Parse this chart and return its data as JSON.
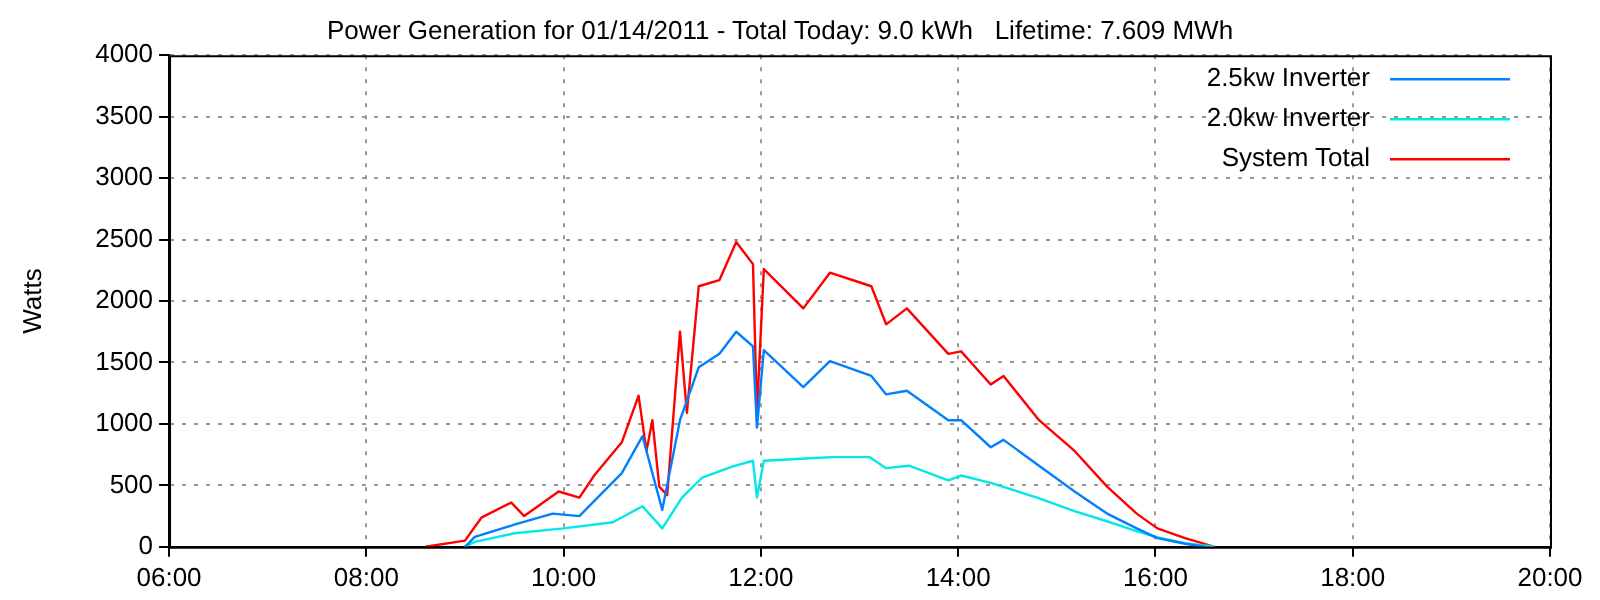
{
  "chart_data": {
    "type": "line",
    "title": "Power Generation for 01/14/2011 - Total Today: 9.0 kWh   Lifetime: 7.609 MWh",
    "ylabel": "Watts",
    "xlim": [
      6,
      20
    ],
    "xticks": [
      {
        "value": 6,
        "label": "06:00"
      },
      {
        "value": 8,
        "label": "08:00"
      },
      {
        "value": 10,
        "label": "10:00"
      },
      {
        "value": 12,
        "label": "12:00"
      },
      {
        "value": 14,
        "label": "14:00"
      },
      {
        "value": 16,
        "label": "16:00"
      },
      {
        "value": 18,
        "label": "18:00"
      },
      {
        "value": 20,
        "label": "20:00"
      }
    ],
    "ylim": [
      0,
      4000
    ],
    "yticks": [
      0,
      500,
      1000,
      1500,
      2000,
      2500,
      3000,
      3500,
      4000
    ],
    "grid": true,
    "legend": "top right",
    "marker": "none",
    "line_style": "solid",
    "series": [
      {
        "name": "2.5kw Inverter",
        "color": "#0080ff",
        "x": [
          9.0,
          9.1,
          9.5,
          9.89,
          10.16,
          10.59,
          10.8,
          11.0,
          11.18,
          11.37,
          11.58,
          11.75,
          11.92,
          11.96,
          12.03,
          12.43,
          12.7,
          13.12,
          13.27,
          13.48,
          13.9,
          14.03,
          14.33,
          14.46,
          14.82,
          15.18,
          15.51,
          15.81,
          16.02,
          16.3,
          16.5
        ],
        "values": [
          0,
          80,
          180,
          270,
          250,
          600,
          900,
          300,
          1030,
          1460,
          1570,
          1750,
          1630,
          970,
          1600,
          1300,
          1510,
          1390,
          1240,
          1270,
          1030,
          1030,
          810,
          870,
          660,
          450,
          270,
          150,
          70,
          25,
          0
        ]
      },
      {
        "name": "2.0kw Inverter",
        "color": "#00e8e8",
        "x": [
          9.0,
          9.1,
          9.5,
          10.0,
          10.5,
          10.8,
          11.0,
          11.2,
          11.4,
          11.7,
          11.92,
          11.96,
          12.03,
          12.5,
          12.72,
          13.1,
          13.27,
          13.5,
          13.9,
          14.03,
          14.33,
          14.8,
          15.18,
          15.5,
          15.8,
          16.0,
          16.3,
          16.6
        ],
        "values": [
          0,
          40,
          110,
          150,
          200,
          330,
          150,
          400,
          560,
          650,
          700,
          400,
          700,
          720,
          730,
          730,
          640,
          660,
          540,
          580,
          520,
          400,
          290,
          210,
          130,
          80,
          30,
          0
        ]
      },
      {
        "name": "System Total",
        "color": "#ff0000",
        "x": [
          8.6,
          9.0,
          9.17,
          9.47,
          9.6,
          9.95,
          10.16,
          10.31,
          10.59,
          10.76,
          10.84,
          10.9,
          10.97,
          11.05,
          11.18,
          11.25,
          11.37,
          11.58,
          11.75,
          11.92,
          11.96,
          12.03,
          12.43,
          12.7,
          13.12,
          13.27,
          13.48,
          13.9,
          14.03,
          14.33,
          14.46,
          14.82,
          15.18,
          15.51,
          15.81,
          16.02,
          16.3,
          16.6
        ],
        "values": [
          0,
          50,
          240,
          360,
          250,
          450,
          400,
          580,
          850,
          1230,
          780,
          1030,
          490,
          420,
          1750,
          1090,
          2120,
          2170,
          2480,
          2300,
          1090,
          2260,
          1940,
          2230,
          2120,
          1810,
          1940,
          1570,
          1590,
          1320,
          1390,
          1030,
          780,
          490,
          270,
          150,
          70,
          0
        ]
      }
    ]
  }
}
